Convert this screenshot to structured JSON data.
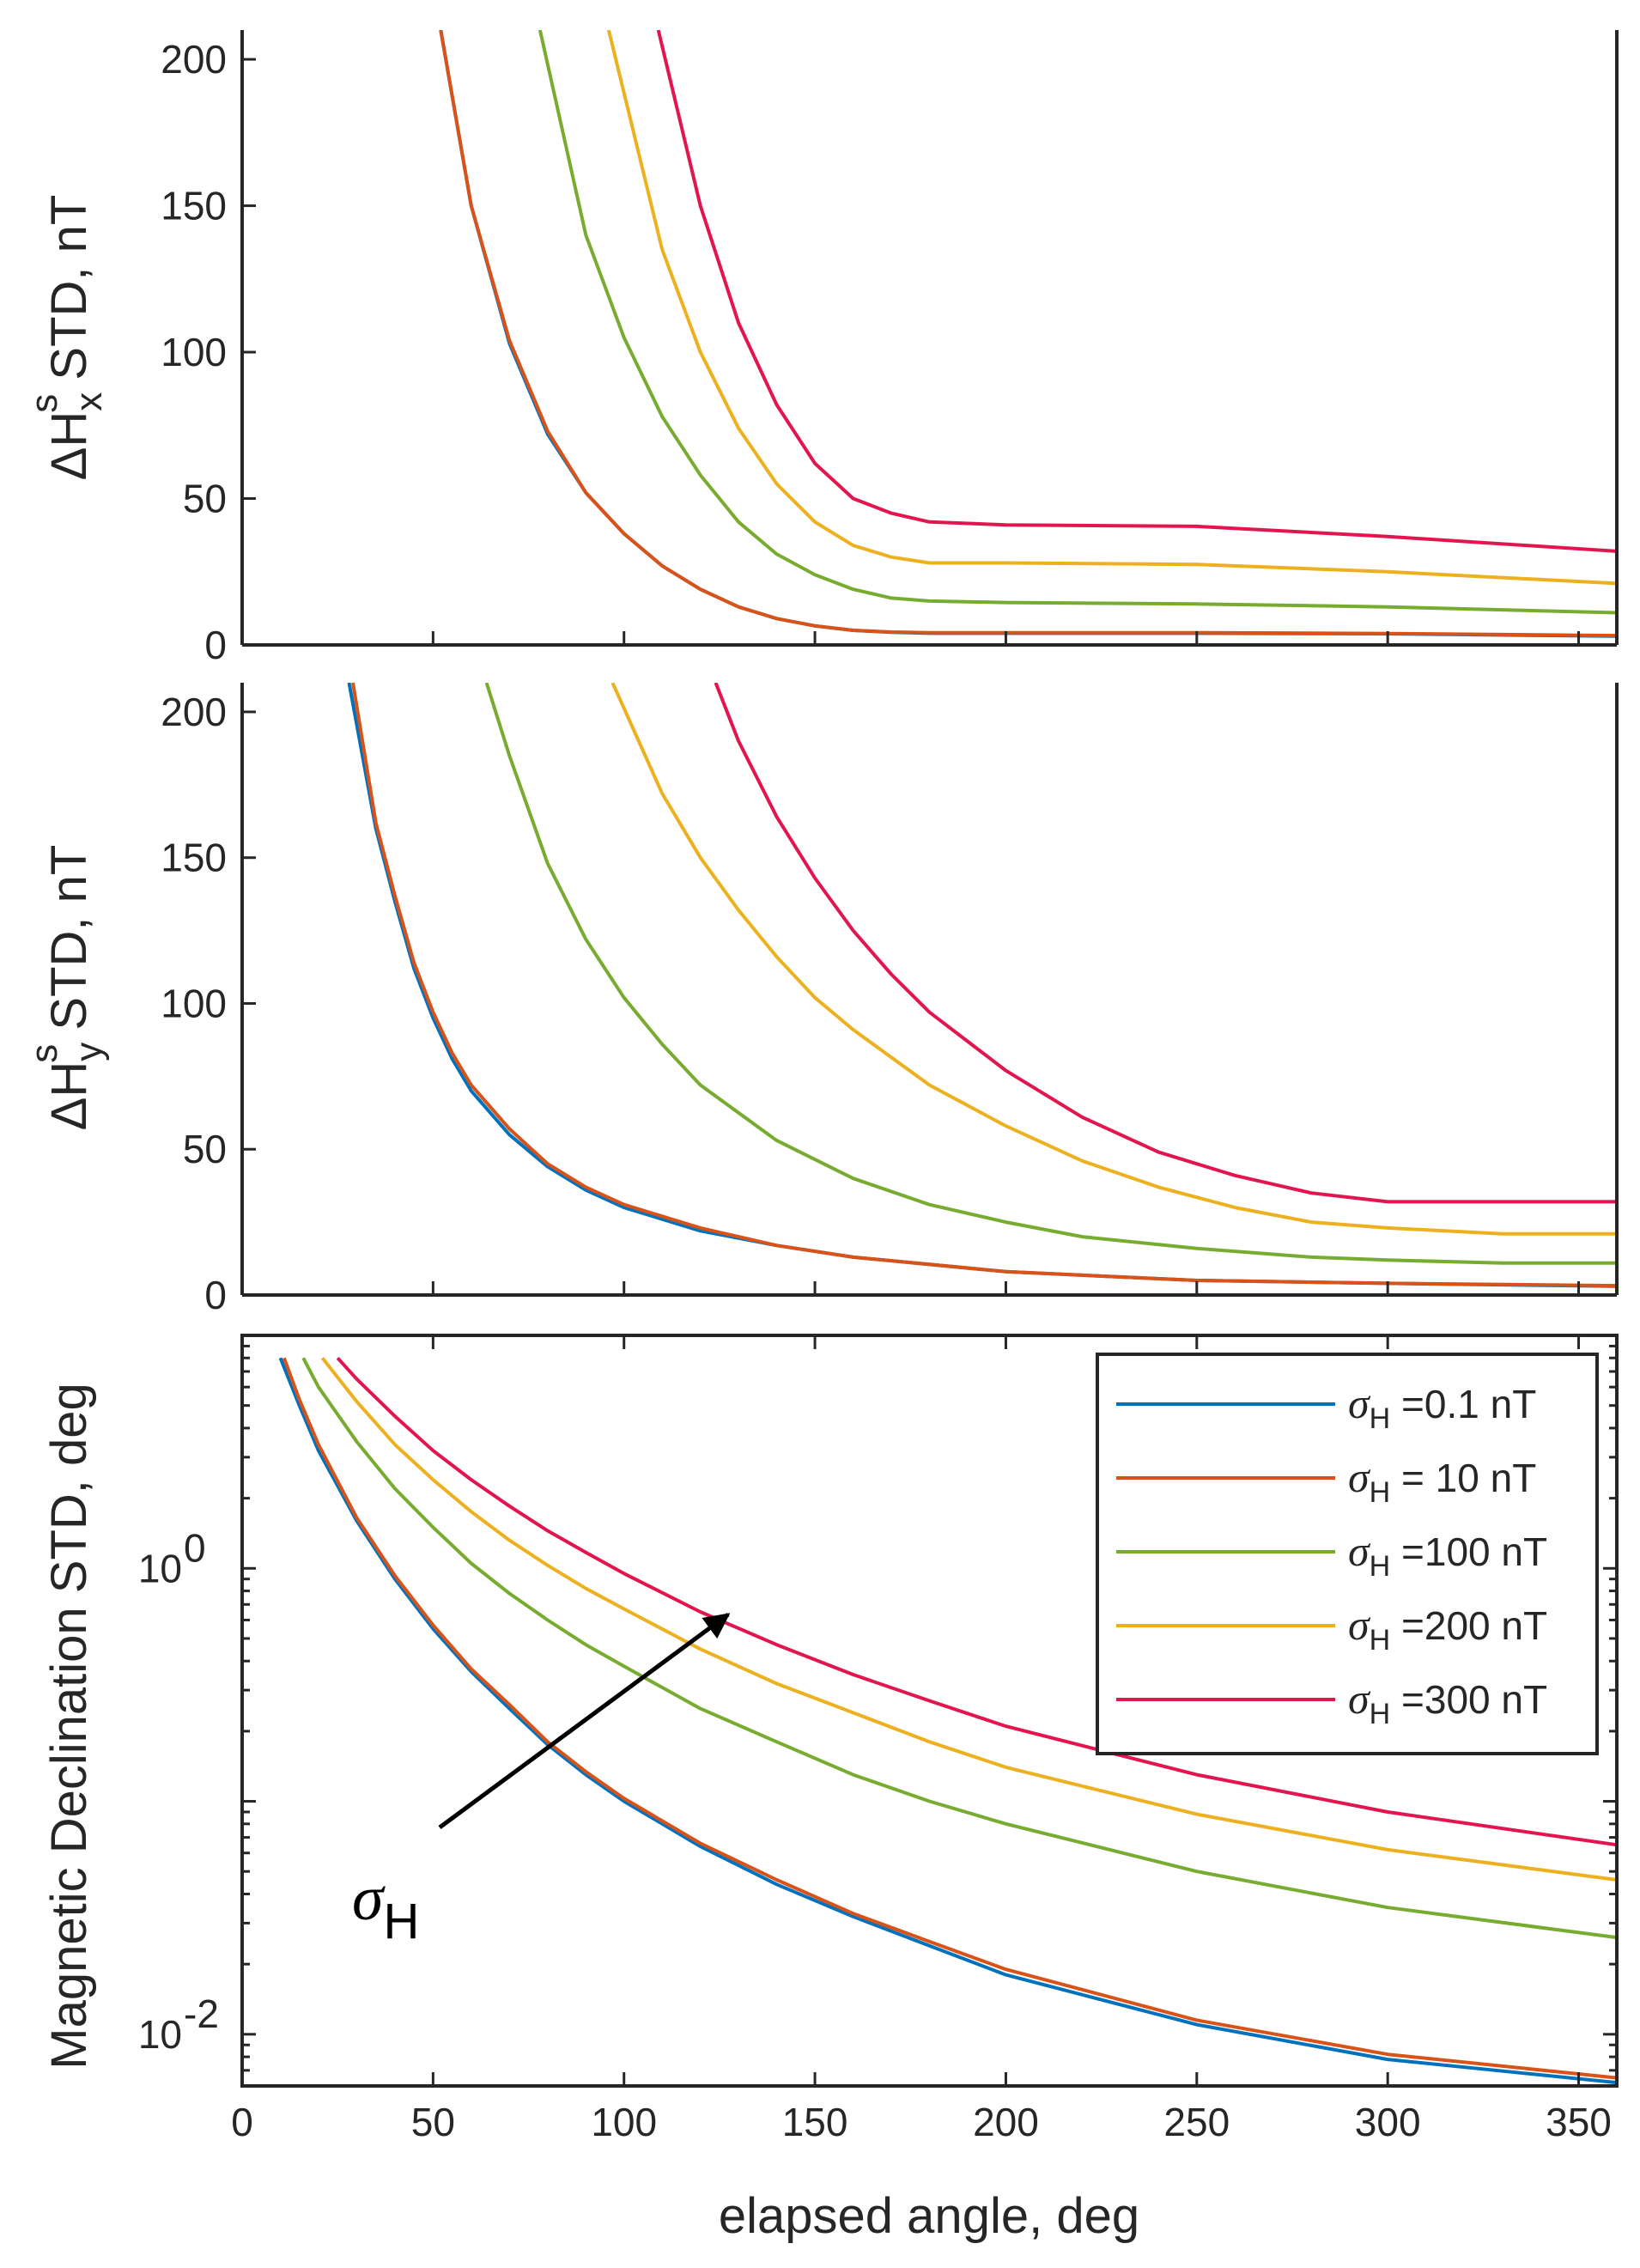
{
  "chart_data": [
    {
      "type": "line",
      "panel": "top",
      "ylabel": "ΔH_x^s STD, nT",
      "ylabel_base": "ΔH",
      "ylabel_sub": "x",
      "ylabel_sup": "s",
      "ylabel_rest": " STD, nT",
      "xlim": [
        0,
        360
      ],
      "ylim": [
        0,
        210
      ],
      "xticks": [
        0,
        50,
        100,
        150,
        200,
        250,
        300,
        350
      ],
      "yticks": [
        "0",
        "50",
        "100",
        "150",
        "200"
      ],
      "series": [
        {
          "name": "σH =0.1 nT",
          "color": "#0072BD",
          "x": [
            52,
            60,
            70,
            80,
            90,
            100,
            110,
            120,
            130,
            140,
            150,
            160,
            170,
            180,
            200,
            250,
            300,
            360
          ],
          "y": [
            210,
            150,
            103,
            72,
            52,
            38,
            27,
            19,
            13,
            9,
            6.5,
            5,
            4.3,
            4,
            4,
            4,
            3.8,
            3
          ]
        },
        {
          "name": "σH = 10 nT",
          "color": "#D95319",
          "x": [
            52,
            60,
            70,
            80,
            90,
            100,
            110,
            120,
            130,
            140,
            150,
            160,
            170,
            180,
            200,
            250,
            300,
            360
          ],
          "y": [
            210,
            150,
            104,
            73,
            52,
            38,
            27,
            19,
            13,
            9,
            6.5,
            5,
            4.4,
            4.2,
            4.2,
            4.2,
            3.9,
            3.2
          ]
        },
        {
          "name": "σH =100 nT",
          "color": "#77AC30",
          "x": [
            78,
            90,
            100,
            110,
            120,
            130,
            140,
            150,
            160,
            170,
            180,
            200,
            250,
            300,
            360
          ],
          "y": [
            210,
            140,
            105,
            78,
            58,
            42,
            31,
            24,
            19,
            16,
            15,
            14.5,
            14,
            13,
            11
          ]
        },
        {
          "name": "σH =200 nT",
          "color": "#EDB120",
          "x": [
            96,
            110,
            120,
            130,
            140,
            150,
            160,
            170,
            180,
            200,
            250,
            300,
            360
          ],
          "y": [
            210,
            135,
            100,
            74,
            55,
            42,
            34,
            30,
            28,
            28,
            27.5,
            25,
            21
          ]
        },
        {
          "name": "σH =300 nT",
          "color": "#E3154F",
          "x": [
            109,
            120,
            130,
            140,
            150,
            160,
            170,
            180,
            200,
            250,
            300,
            360
          ],
          "y": [
            210,
            150,
            110,
            82,
            62,
            50,
            45,
            42,
            41,
            40.5,
            37,
            32
          ]
        }
      ]
    },
    {
      "type": "line",
      "panel": "middle",
      "ylabel": "ΔH_y^s STD, nT",
      "ylabel_base": "ΔH",
      "ylabel_sub": "y",
      "ylabel_sup": "s",
      "ylabel_rest": " STD, nT",
      "xlim": [
        0,
        360
      ],
      "ylim": [
        0,
        210
      ],
      "xticks": [
        0,
        50,
        100,
        150,
        200,
        250,
        300,
        350
      ],
      "yticks": [
        "0",
        "50",
        "100",
        "150",
        "200"
      ],
      "series": [
        {
          "name": "σH =0.1 nT",
          "color": "#0072BD",
          "x": [
            28,
            35,
            40,
            45,
            50,
            55,
            60,
            70,
            80,
            90,
            100,
            120,
            140,
            160,
            200,
            250,
            300,
            360
          ],
          "y": [
            210,
            160,
            135,
            112,
            95,
            81,
            70,
            55,
            44,
            36,
            30,
            22,
            17,
            13,
            8,
            5,
            4,
            3
          ]
        },
        {
          "name": "σH = 10 nT",
          "color": "#D95319",
          "x": [
            29,
            35,
            40,
            45,
            50,
            55,
            60,
            70,
            80,
            90,
            100,
            120,
            140,
            160,
            200,
            250,
            300,
            360
          ],
          "y": [
            210,
            162,
            137,
            114,
            97,
            83,
            72,
            57,
            45,
            37,
            31,
            23,
            17,
            13,
            8,
            5,
            4,
            3.2
          ]
        },
        {
          "name": "σH =100 nT",
          "color": "#77AC30",
          "x": [
            64,
            70,
            80,
            90,
            100,
            110,
            120,
            140,
            160,
            180,
            200,
            220,
            250,
            280,
            300,
            330,
            360
          ],
          "y": [
            210,
            185,
            148,
            122,
            102,
            86,
            72,
            53,
            40,
            31,
            25,
            20,
            16,
            13,
            12,
            11,
            11
          ]
        },
        {
          "name": "σH =200 nT",
          "color": "#EDB120",
          "x": [
            97,
            110,
            120,
            130,
            140,
            150,
            160,
            180,
            200,
            220,
            240,
            260,
            280,
            300,
            330,
            360
          ],
          "y": [
            210,
            172,
            150,
            132,
            116,
            102,
            91,
            72,
            58,
            46,
            37,
            30,
            25,
            23,
            21,
            21
          ]
        },
        {
          "name": "σH =300 nT",
          "color": "#E3154F",
          "x": [
            124,
            130,
            140,
            150,
            160,
            170,
            180,
            200,
            220,
            240,
            260,
            280,
            300,
            320,
            340,
            360
          ],
          "y": [
            210,
            190,
            164,
            143,
            125,
            110,
            97,
            77,
            61,
            49,
            41,
            35,
            32,
            32,
            32,
            32
          ]
        }
      ]
    },
    {
      "type": "line",
      "panel": "bottom",
      "yscale": "log",
      "ylabel": "Magnetic Declination STD, deg",
      "xlabel": "elapsed angle, deg",
      "xlim": [
        0,
        360
      ],
      "ylim": [
        0.006,
        10
      ],
      "xticks": [
        0,
        50,
        100,
        150,
        200,
        250,
        300,
        350
      ],
      "yticks": [
        {
          "value": 1,
          "base": "10",
          "exp": "0"
        },
        {
          "value": 0.01,
          "base": "10",
          "exp": "-2"
        }
      ],
      "legend_location": "top-right",
      "series": [
        {
          "name": "σH =0.1 nT",
          "color": "#0072BD",
          "x": [
            10,
            15,
            20,
            30,
            40,
            50,
            60,
            70,
            80,
            90,
            100,
            120,
            140,
            160,
            180,
            200,
            250,
            300,
            360
          ],
          "y": [
            8,
            5,
            3.2,
            1.6,
            0.9,
            0.55,
            0.36,
            0.25,
            0.175,
            0.13,
            0.1,
            0.064,
            0.044,
            0.032,
            0.024,
            0.018,
            0.011,
            0.0078,
            0.0062
          ]
        },
        {
          "name": "σH = 10 nT",
          "color": "#D95319",
          "x": [
            11,
            15,
            20,
            30,
            40,
            50,
            60,
            70,
            80,
            90,
            100,
            120,
            140,
            160,
            180,
            200,
            250,
            300,
            360
          ],
          "y": [
            8,
            5.3,
            3.4,
            1.65,
            0.93,
            0.57,
            0.37,
            0.26,
            0.18,
            0.134,
            0.103,
            0.066,
            0.046,
            0.033,
            0.025,
            0.019,
            0.0115,
            0.0082,
            0.0065
          ]
        },
        {
          "name": "σH =100 nT",
          "color": "#77AC30",
          "x": [
            16,
            20,
            30,
            40,
            50,
            60,
            70,
            80,
            90,
            100,
            120,
            140,
            160,
            180,
            200,
            250,
            300,
            360
          ],
          "y": [
            8,
            6,
            3.5,
            2.2,
            1.5,
            1.05,
            0.78,
            0.6,
            0.47,
            0.38,
            0.25,
            0.18,
            0.13,
            0.1,
            0.08,
            0.05,
            0.035,
            0.026
          ]
        },
        {
          "name": "σH =200 nT",
          "color": "#EDB120",
          "x": [
            21,
            30,
            40,
            50,
            60,
            70,
            80,
            90,
            100,
            120,
            140,
            160,
            180,
            200,
            250,
            300,
            360
          ],
          "y": [
            8,
            5.2,
            3.4,
            2.4,
            1.75,
            1.32,
            1.03,
            0.82,
            0.67,
            0.45,
            0.32,
            0.24,
            0.18,
            0.14,
            0.088,
            0.062,
            0.046
          ]
        },
        {
          "name": "σH =300 nT",
          "color": "#E3154F",
          "x": [
            25,
            30,
            40,
            50,
            60,
            70,
            80,
            90,
            100,
            120,
            140,
            160,
            180,
            200,
            250,
            300,
            360
          ],
          "y": [
            8,
            6.5,
            4.5,
            3.2,
            2.4,
            1.85,
            1.45,
            1.17,
            0.95,
            0.65,
            0.47,
            0.35,
            0.27,
            0.21,
            0.13,
            0.09,
            0.065
          ]
        }
      ],
      "legend": [
        {
          "label": "σ",
          "sub": "H",
          "text": " =0.1 nT",
          "color": "#0072BD"
        },
        {
          "label": "σ",
          "sub": "H",
          "text": " = 10 nT",
          "color": "#D95319"
        },
        {
          "label": "σ",
          "sub": "H",
          "text": " =100 nT",
          "color": "#77AC30"
        },
        {
          "label": "σ",
          "sub": "H",
          "text": " =200 nT",
          "color": "#EDB120"
        },
        {
          "label": "σ",
          "sub": "H",
          "text": " =300 nT",
          "color": "#E3154F"
        }
      ],
      "annotation": {
        "label": "σ",
        "sub": "H",
        "meaning": "arrow indicating increasing σH"
      }
    }
  ]
}
